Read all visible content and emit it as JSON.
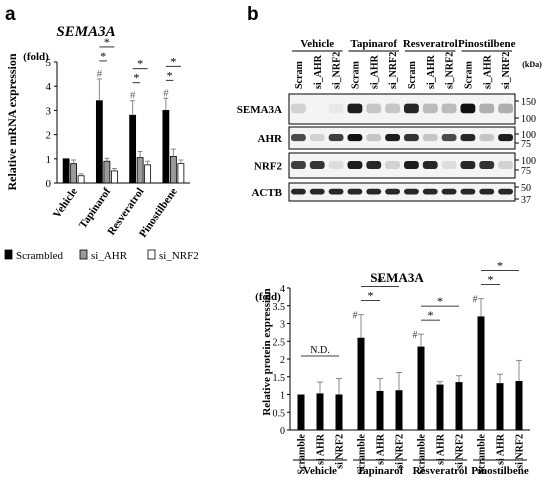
{
  "panel_a": {
    "label": "a",
    "legend": [
      {
        "name": "Scrambled",
        "color": "#000000"
      },
      {
        "name": "si_AHR",
        "color": "#9a9a9a"
      },
      {
        "name": "si_NRF2",
        "color": "#ffffff"
      }
    ]
  },
  "panel_b": {
    "label": "b",
    "blot": {
      "groups": [
        "Vehicle",
        "Tapinarof",
        "Resveratrol",
        "Pinostilbene"
      ],
      "lanes": [
        "Scram",
        "si_AHR",
        "si_NRF2"
      ],
      "kda_label": "(kDa)",
      "rows": [
        {
          "name": "SEMA3A",
          "markers": [
            "150",
            "100"
          ]
        },
        {
          "name": "AHR",
          "markers": [
            "100",
            "75"
          ]
        },
        {
          "name": "NRF2",
          "markers": [
            "100",
            "75"
          ]
        },
        {
          "name": "ACTB",
          "markers": [
            "50",
            "37"
          ]
        }
      ]
    }
  },
  "chart_data": [
    {
      "type": "bar",
      "title": "SEMA3A",
      "unit": "(fold)",
      "ylabel": "Relative mRNA expression",
      "categories": [
        "Vehicle",
        "Tapinarof",
        "Resveratrol",
        "Pinostilbene"
      ],
      "ylim": [
        0,
        5
      ],
      "yticks": [
        0,
        1,
        2,
        3,
        4,
        5
      ],
      "series": [
        {
          "name": "Scrambled",
          "values": [
            1.0,
            3.4,
            2.8,
            3.0
          ],
          "errors": [
            0.0,
            0.9,
            0.6,
            0.5
          ]
        },
        {
          "name": "si_AHR",
          "values": [
            0.8,
            0.9,
            1.05,
            1.1
          ],
          "errors": [
            0.15,
            0.12,
            0.25,
            0.3
          ]
        },
        {
          "name": "si_NRF2",
          "values": [
            0.3,
            0.5,
            0.75,
            0.8
          ],
          "errors": [
            0.08,
            0.1,
            0.15,
            0.15
          ]
        }
      ],
      "annotations": [
        {
          "type": "hash",
          "category": "Tapinarof",
          "series": "Scrambled",
          "text": "#"
        },
        {
          "type": "hash",
          "category": "Resveratrol",
          "series": "Scrambled",
          "text": "#"
        },
        {
          "type": "hash",
          "category": "Pinostilbene",
          "series": "Scrambled",
          "text": "#"
        },
        {
          "type": "significance",
          "category": "Tapinarof",
          "from": "Scrambled",
          "to": "si_AHR",
          "text": "*"
        },
        {
          "type": "significance",
          "category": "Tapinarof",
          "from": "Scrambled",
          "to": "si_NRF2",
          "text": "*"
        },
        {
          "type": "significance",
          "category": "Resveratrol",
          "from": "Scrambled",
          "to": "si_AHR",
          "text": "*"
        },
        {
          "type": "significance",
          "category": "Resveratrol",
          "from": "Scrambled",
          "to": "si_NRF2",
          "text": "*"
        },
        {
          "type": "significance",
          "category": "Pinostilbene",
          "from": "Scrambled",
          "to": "si_AHR",
          "text": "*"
        },
        {
          "type": "significance",
          "category": "Pinostilbene",
          "from": "Scrambled",
          "to": "si_NRF2",
          "text": "*"
        }
      ]
    },
    {
      "type": "bar",
      "title": "SEMA3A",
      "unit": "(fold)",
      "ylabel": "Relative protein expression",
      "groups": [
        "Vehicle",
        "Tapinarof",
        "Resveratrol",
        "Pinostilbene"
      ],
      "bar_labels": [
        "Scramble",
        "si AHR",
        "si NRF2"
      ],
      "ylim": [
        0,
        4
      ],
      "yticks": [
        "0",
        "0.5",
        "1",
        "1.5",
        "2",
        "2.5",
        "3",
        "3.5",
        "4"
      ],
      "values": [
        [
          1.0,
          1.03,
          1.0
        ],
        [
          2.6,
          1.1,
          1.12
        ],
        [
          2.35,
          1.28,
          1.35
        ],
        [
          3.2,
          1.32,
          1.38
        ]
      ],
      "errors": [
        [
          0.0,
          0.32,
          0.45
        ],
        [
          0.65,
          0.35,
          0.5
        ],
        [
          0.35,
          0.08,
          0.18
        ],
        [
          0.5,
          0.25,
          0.58
        ]
      ],
      "annotations": [
        {
          "type": "ns",
          "group": "Vehicle",
          "text": "N.D."
        },
        {
          "type": "hash",
          "group": "Tapinarof",
          "text": "#"
        },
        {
          "type": "hash",
          "group": "Resveratrol",
          "text": "#"
        },
        {
          "type": "hash",
          "group": "Pinostilbene",
          "text": "#"
        },
        {
          "type": "significance",
          "group": "Tapinarof",
          "from": "Scramble",
          "to": "si AHR",
          "text": "*"
        },
        {
          "type": "significance",
          "group": "Tapinarof",
          "from": "Scramble",
          "to": "si NRF2",
          "text": "*"
        },
        {
          "type": "significance",
          "group": "Resveratrol",
          "from": "Scramble",
          "to": "si AHR",
          "text": "*"
        },
        {
          "type": "significance",
          "group": "Resveratrol",
          "from": "Scramble",
          "to": "si NRF2",
          "text": "*"
        },
        {
          "type": "significance",
          "group": "Pinostilbene",
          "from": "Scramble",
          "to": "si AHR",
          "text": "*"
        },
        {
          "type": "significance",
          "group": "Pinostilbene",
          "from": "Scramble",
          "to": "si NRF2",
          "text": "*"
        }
      ]
    }
  ]
}
